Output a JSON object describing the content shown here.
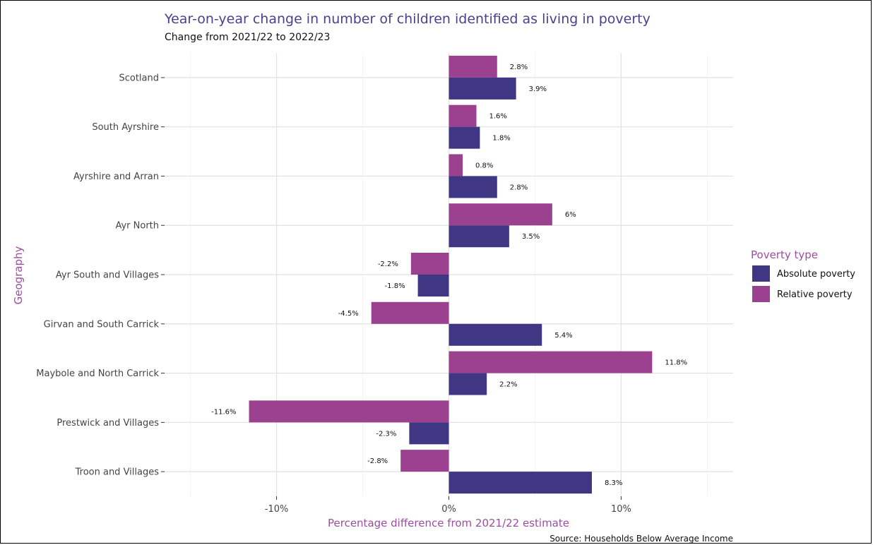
{
  "chart_data": {
    "type": "bar",
    "orientation": "horizontal",
    "title": "Year-on-year change in number of children identified as living in poverty",
    "subtitle": "Change from 2021/22 to 2022/23",
    "xlabel": "Percentage difference from 2021/22 estimate",
    "ylabel": "Geography",
    "caption": "Source: Households Below Average Income",
    "xlim": [
      -16.5,
      16.5
    ],
    "x_ticks": [
      -10,
      0,
      10
    ],
    "x_tick_labels": [
      "-10%",
      "0%",
      "10%"
    ],
    "grid": true,
    "legend": {
      "title": "Poverty type",
      "position": "right",
      "entries": [
        "Absolute poverty",
        "Relative poverty"
      ]
    },
    "categories": [
      "Scotland",
      "South Ayrshire",
      "Ayrshire and Arran",
      "Ayr North",
      "Ayr South and Villages",
      "Girvan and South Carrick",
      "Maybole and North Carrick",
      "Prestwick and Villages",
      "Troon and Villages"
    ],
    "series": [
      {
        "name": "Absolute poverty",
        "color": "#3f3784",
        "values": [
          3.9,
          1.8,
          2.8,
          3.5,
          -1.8,
          5.4,
          2.2,
          -2.3,
          8.3
        ],
        "labels": [
          "3.9%",
          "1.8%",
          "2.8%",
          "3.5%",
          "-1.8%",
          "5.4%",
          "2.2%",
          "-2.3%",
          "8.3%"
        ]
      },
      {
        "name": "Relative poverty",
        "color": "#9b4190",
        "values": [
          2.8,
          1.6,
          0.8,
          6,
          -2.2,
          -4.5,
          11.8,
          -11.6,
          -2.8
        ],
        "labels": [
          "2.8%",
          "1.6%",
          "0.8%",
          "6%",
          "-2.2%",
          "-4.5%",
          "11.8%",
          "-11.6%",
          "-2.8%"
        ]
      }
    ]
  }
}
